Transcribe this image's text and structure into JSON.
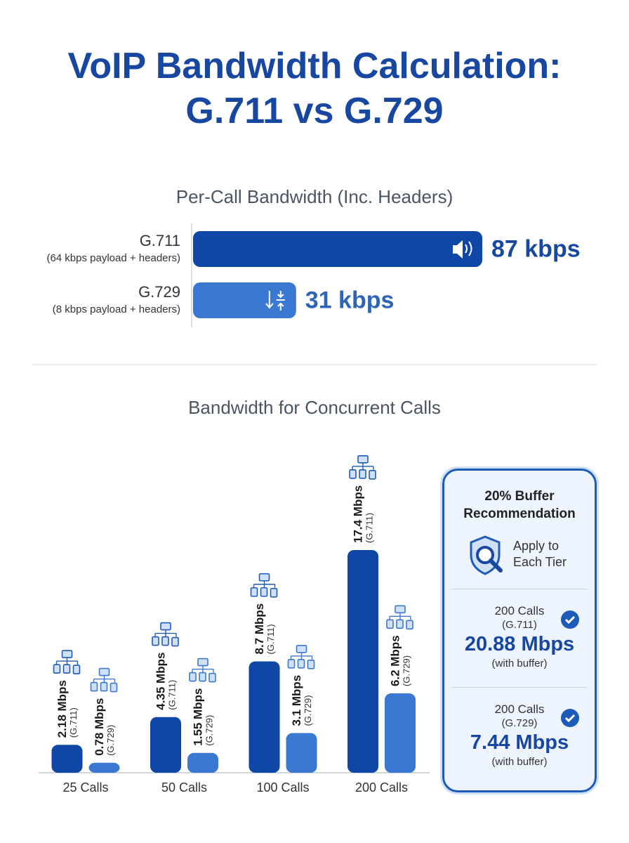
{
  "title": "VoIP Bandwidth Calculation: G.711 vs G.729",
  "chart_data": [
    {
      "type": "hbar",
      "title": "Per-Call Bandwidth (Inc. Headers)",
      "categories": [
        "G.711",
        "G.729"
      ],
      "notes": [
        "(64 kbps payload + headers)",
        "(8 kbps payload + headers)"
      ],
      "values": [
        87,
        31
      ],
      "value_labels": [
        "87 kbps",
        "31 kbps"
      ],
      "colors": [
        "#0f47a6",
        "#3b78d1"
      ]
    },
    {
      "type": "grouped_bar",
      "title": "Bandwidth for Concurrent Calls",
      "categories": [
        "25 Calls",
        "50 Calls",
        "100 Calls",
        "200 Calls"
      ],
      "series": [
        {
          "name": "(G.711)",
          "color": "#0f47a6",
          "values": [
            2.18,
            4.35,
            8.7,
            17.4
          ],
          "value_labels": [
            "2.18 Mbps",
            "4.35 Mbps",
            "8.7 Mbps",
            "17.4 Mbps"
          ]
        },
        {
          "name": "(G.729)",
          "color": "#3b78d1",
          "values": [
            0.78,
            1.55,
            3.1,
            6.2
          ],
          "value_labels": [
            "0.78 Mbps",
            "1.55 Mbps",
            "3.1 Mbps",
            "6.2 Mbps"
          ]
        }
      ]
    }
  ],
  "buffer_box": {
    "title": "20% Buffer Recommendation",
    "subtitle": "Apply to Each Tier",
    "items": [
      {
        "calls": "200 Calls",
        "codec": "(G.711)",
        "value": "20.88 Mbps",
        "note": "(with buffer)"
      },
      {
        "calls": "200 Calls",
        "codec": "(G.729)",
        "value": "7.44 Mbps",
        "note": "(with buffer)"
      }
    ]
  }
}
